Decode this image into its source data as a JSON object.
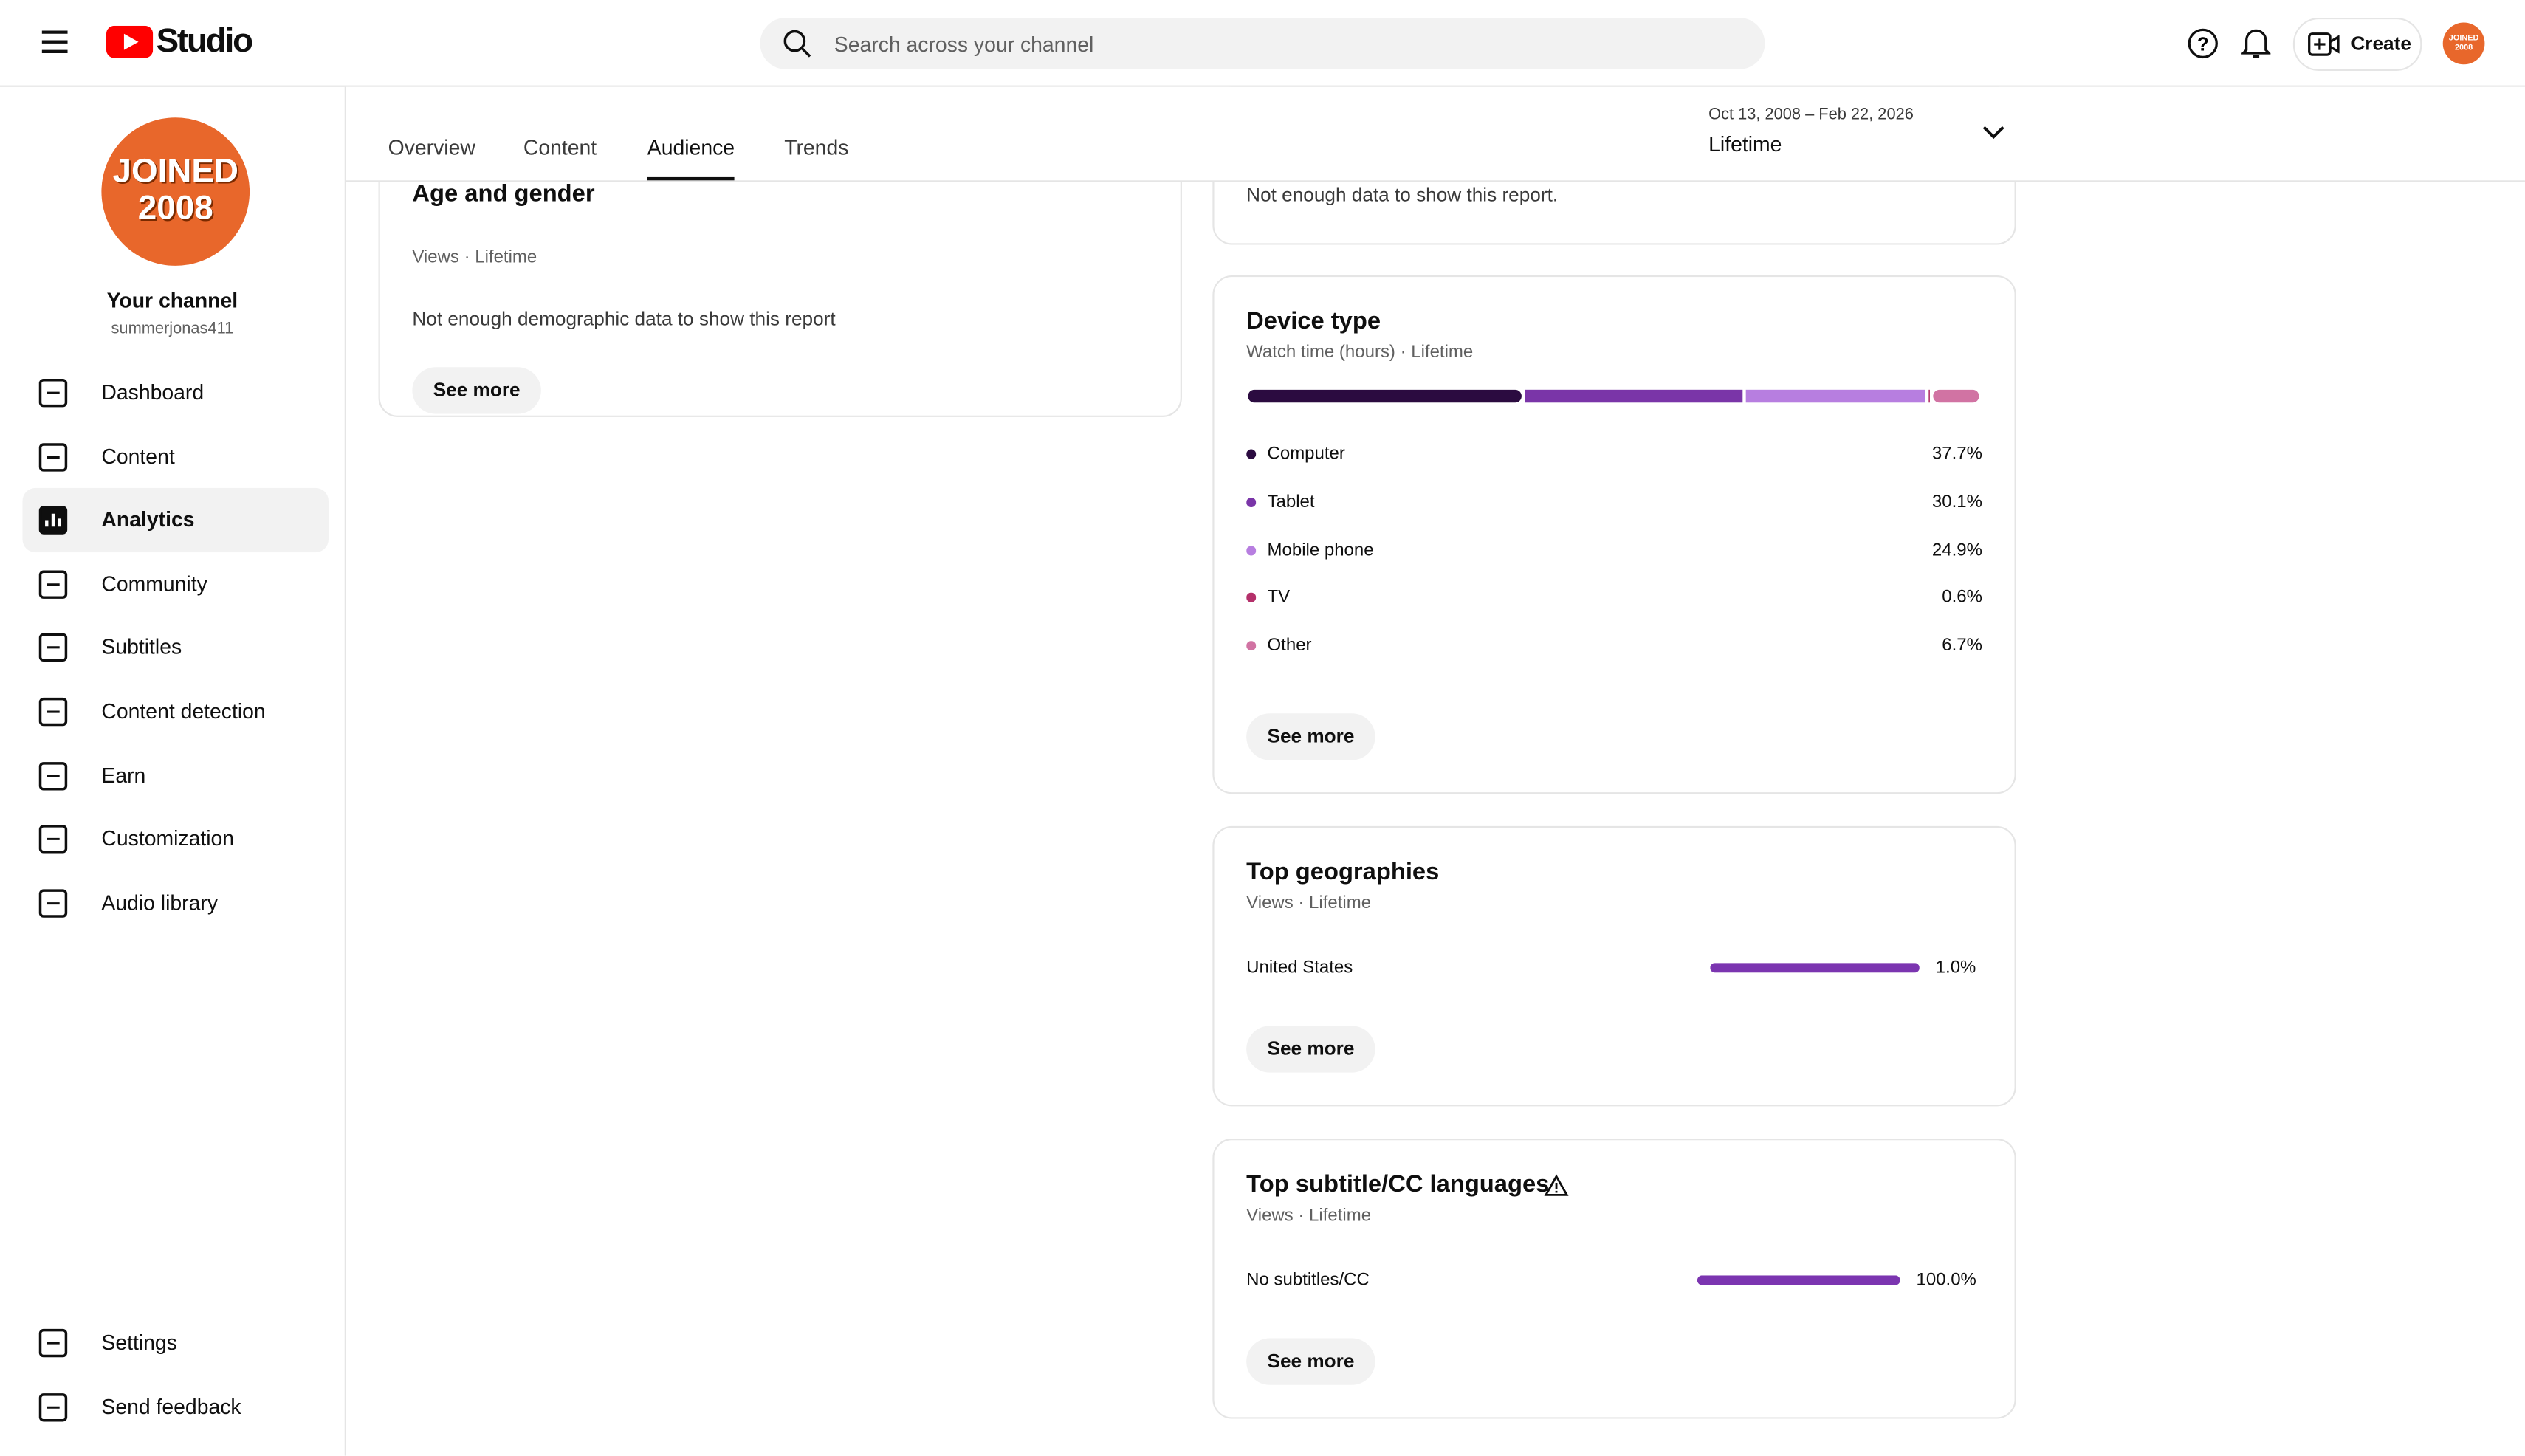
{
  "header": {
    "logo_text": "Studio",
    "search_placeholder": "Search across your channel",
    "create": "Create",
    "avatar_lines": [
      "JOINED",
      "2008"
    ]
  },
  "sidebar": {
    "channel_label": "Your channel",
    "handle": "summerjonas411",
    "items": [
      "Dashboard",
      "Content",
      "Analytics",
      "Community",
      "Subtitles",
      "Content detection",
      "Earn",
      "Customization",
      "Audio library"
    ],
    "bottom_items": [
      "Settings",
      "Send feedback"
    ]
  },
  "tabs": [
    "Overview",
    "Content",
    "Audience",
    "Trends"
  ],
  "date_range": {
    "range": "Oct 13, 2008 – Feb 22, 2026",
    "period": "Lifetime"
  },
  "age_gender": {
    "title": "Age and gender",
    "subtitle": "Views · Lifetime",
    "message": "Not enough demographic data to show this report",
    "button": "See more"
  },
  "upper_card": {
    "message": "Not enough data to show this report."
  },
  "device_type": {
    "title": "Device type",
    "subtitle": "Watch time (hours) · Lifetime",
    "categories": [
      "Computer",
      "Tablet",
      "Mobile phone",
      "TV",
      "Other"
    ],
    "values": [
      37.7,
      30.1,
      24.9,
      0.6,
      6.7
    ],
    "value_labels": [
      "37.7%",
      "30.1%",
      "24.9%",
      "0.6%",
      "6.7%"
    ],
    "colors": [
      "#2b0b40",
      "#7a35a8",
      "#b77ee0",
      "#b4306a",
      "#d173a3"
    ],
    "button": "See more"
  },
  "geographies": {
    "title": "Top geographies",
    "subtitle": "Views · Lifetime",
    "rows": [
      {
        "name": "United States",
        "value": 1.0,
        "value_label": "1.0%"
      }
    ],
    "button": "See more"
  },
  "subtitle_languages": {
    "title": "Top subtitle/CC languages",
    "subtitle": "Views · Lifetime",
    "rows": [
      {
        "name": "No subtitles/CC",
        "value": 100.0,
        "value_label": "100.0%"
      }
    ],
    "button": "See more"
  }
}
